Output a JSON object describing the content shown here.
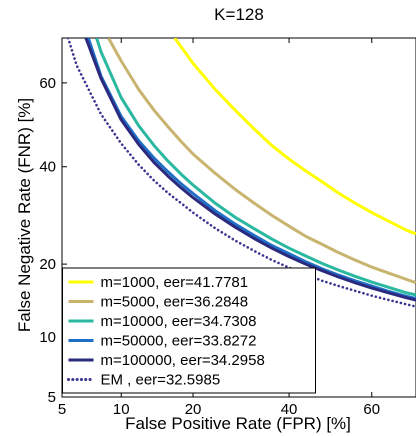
{
  "chart_data": {
    "type": "line",
    "title": "K=128",
    "xlabel": "False Positive Rate (FPR) [%]",
    "ylabel": "False Negative Rate (FNR) [%]",
    "x_ticks": [
      5,
      10,
      20,
      40,
      60
    ],
    "y_ticks": [
      5,
      10,
      20,
      40,
      60
    ],
    "xlim": [
      5,
      70
    ],
    "ylim": [
      5,
      70
    ],
    "grid": false,
    "legend_position": "bottom-left",
    "series": [
      {
        "name": "m=1000, eer=41.7781",
        "color": "#ffff00",
        "line_style": "solid",
        "x": [
          17,
          20,
          24,
          28,
          32,
          36,
          40,
          44,
          48,
          52,
          56,
          60,
          64,
          68,
          70
        ],
        "y": [
          70,
          64.5,
          58.5,
          53.5,
          49,
          45,
          41.8,
          39,
          36.5,
          34,
          31.8,
          29.8,
          28,
          26.2,
          25.5
        ]
      },
      {
        "name": "m=5000, eer=36.2848",
        "color": "#c8b46e",
        "line_style": "solid",
        "x": [
          8.7,
          10,
          12,
          14,
          16,
          18,
          20,
          24,
          28,
          32,
          36,
          40,
          44,
          48,
          52,
          56,
          60,
          64,
          68,
          70
        ],
        "y": [
          70,
          65,
          58.5,
          53.5,
          49.5,
          46,
          43,
          38.5,
          34.8,
          31.8,
          29.2,
          27,
          25,
          23.5,
          22,
          20.7,
          19.5,
          18.5,
          17.5,
          17
        ]
      },
      {
        "name": "m=10000, eer=34.7308",
        "color": "#2ab8a0",
        "line_style": "solid",
        "x": [
          7.6,
          8,
          10,
          12,
          14,
          16,
          18,
          20,
          24,
          28,
          32,
          36,
          40,
          44,
          48,
          52,
          56,
          60,
          64,
          68,
          70
        ],
        "y": [
          70,
          67,
          56.5,
          49.8,
          45,
          41.3,
          38.3,
          35.8,
          31.8,
          28.8,
          26.5,
          24.5,
          22.8,
          21.4,
          20.1,
          19,
          18,
          17.1,
          16.3,
          15.5,
          15.2
        ]
      },
      {
        "name": "m=50000, eer=33.8272",
        "color": "#1f6fc6",
        "line_style": "solid",
        "x": [
          6.9,
          8,
          10,
          12,
          14,
          16,
          18,
          20,
          24,
          28,
          32,
          36,
          40,
          44,
          48,
          52,
          56,
          60,
          64,
          68,
          70
        ],
        "y": [
          70,
          61.5,
          52,
          46.2,
          42,
          38.8,
          36.1,
          33.9,
          30.2,
          27.4,
          25.2,
          23.3,
          21.8,
          20.4,
          19.2,
          18.2,
          17.3,
          16.5,
          15.7,
          15,
          14.7
        ]
      },
      {
        "name": "m=100000, eer=34.2958",
        "color": "#2b2a7e",
        "line_style": "solid",
        "x": [
          6.7,
          8,
          10,
          12,
          14,
          16,
          18,
          20,
          24,
          28,
          32,
          36,
          40,
          44,
          48,
          52,
          56,
          60,
          64,
          68,
          70
        ],
        "y": [
          70,
          61,
          51.2,
          45.3,
          41,
          37.8,
          35.2,
          33,
          29.5,
          26.8,
          24.6,
          22.8,
          21.3,
          20,
          18.9,
          17.9,
          17,
          16.2,
          15.5,
          14.8,
          14.5
        ]
      },
      {
        "name": "EM , eer=32.5985",
        "color": "#3b3592",
        "line_style": "dotted",
        "x": [
          5.4,
          6,
          8,
          10,
          12,
          14,
          16,
          18,
          20,
          24,
          28,
          32,
          36,
          40,
          44,
          48,
          52,
          56,
          60,
          64,
          68,
          70
        ],
        "y": [
          70,
          64,
          52.5,
          45.5,
          40.5,
          36.8,
          34,
          31.8,
          29.8,
          26.6,
          24.2,
          22.3,
          20.7,
          19.4,
          18.3,
          17.3,
          16.5,
          15.8,
          15.1,
          14.5,
          13.9,
          13.6
        ]
      }
    ]
  }
}
